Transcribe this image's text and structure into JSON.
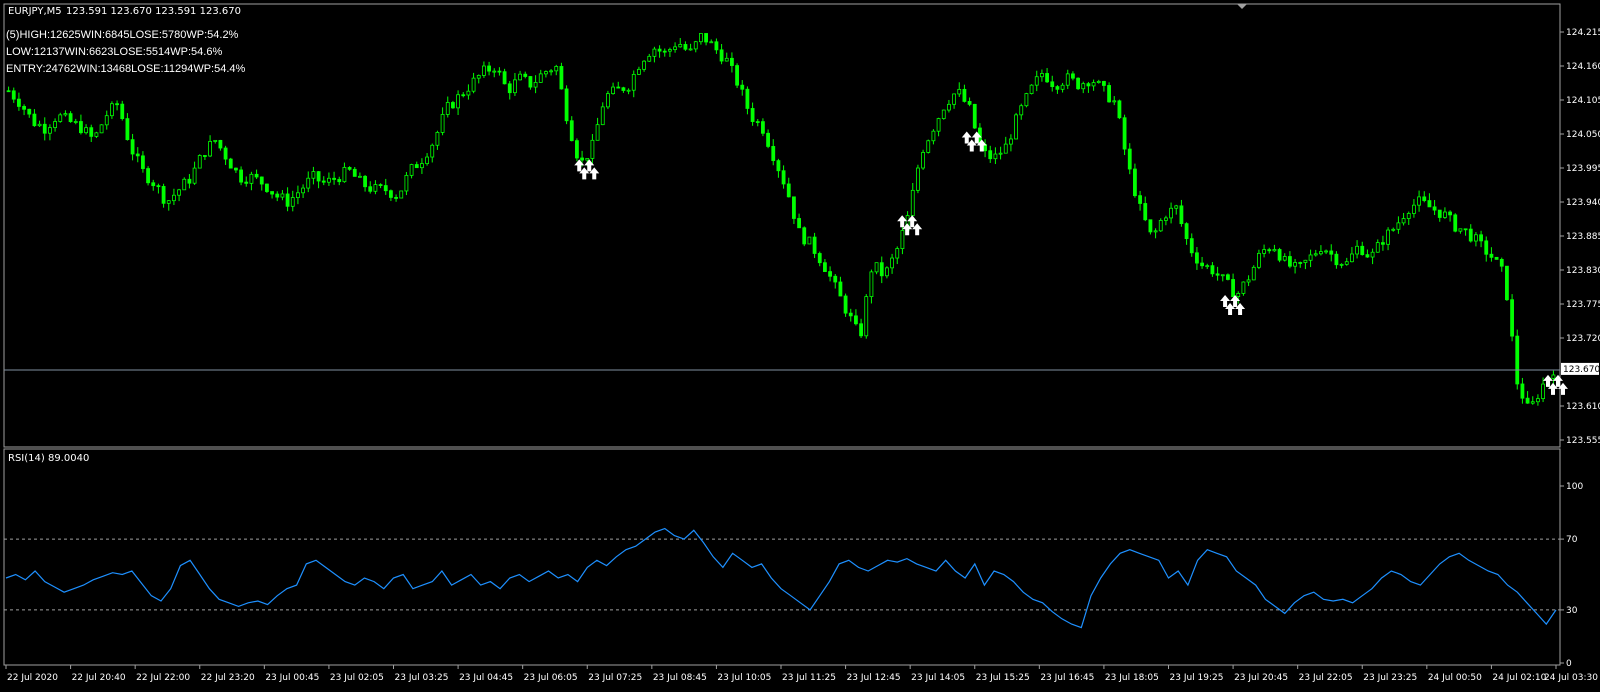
{
  "header": {
    "symbol": "EURJPY,M5",
    "ohlc": "123.591 123.670 123.591 123.670"
  },
  "stats": {
    "high": "(5)HIGH:12625WIN:6845LOSE:5780WP:54.2%",
    "low": "LOW:12137WIN:6623LOSE:5514WP:54.6%",
    "entry": "ENTRY:24762WIN:13468LOSE:11294WP:54.4%"
  },
  "colors": {
    "background": "#000000",
    "candle": "#00ff00",
    "rsi_line": "#1e90ff",
    "grid_line": "#a0a0a0",
    "arrow": "#ffffff",
    "price_line": "#8090a0"
  },
  "chart_data": [
    {
      "type": "candlestick",
      "title": "EURJPY,M5",
      "ylim": [
        123.555,
        124.215
      ],
      "y_ticks": [
        "124.215",
        "124.160",
        "124.105",
        "124.050",
        "123.995",
        "123.940",
        "123.885",
        "123.830",
        "123.775",
        "123.720",
        "123.670",
        "123.610",
        "123.555"
      ],
      "current_price": "123.670",
      "x_ticks": [
        "22 Jul 2020",
        "22 Jul 20:40",
        "22 Jul 22:00",
        "22 Jul 23:20",
        "23 Jul 00:45",
        "23 Jul 02:05",
        "23 Jul 03:25",
        "23 Jul 04:45",
        "23 Jul 06:05",
        "23 Jul 07:25",
        "23 Jul 08:45",
        "23 Jul 10:05",
        "23 Jul 11:25",
        "23 Jul 12:45",
        "23 Jul 14:05",
        "23 Jul 15:25",
        "23 Jul 16:45",
        "23 Jul 18:05",
        "23 Jul 19:25",
        "23 Jul 20:45",
        "23 Jul 22:05",
        "23 Jul 23:25",
        "24 Jul 00:50",
        "24 Jul 02:10",
        "24 Jul 03:30"
      ],
      "close_trajectory": [
        124.12,
        124.1,
        124.07,
        124.06,
        124.08,
        124.07,
        124.06,
        124.04,
        124.08,
        124.1,
        124.03,
        123.99,
        123.97,
        123.94,
        123.96,
        123.98,
        124.02,
        124.04,
        124.01,
        123.98,
        123.98,
        123.97,
        123.95,
        123.94,
        123.96,
        123.98,
        123.97,
        123.98,
        123.99,
        123.97,
        123.96,
        123.96,
        123.95,
        123.99,
        124.01,
        124.04,
        124.09,
        124.11,
        124.13,
        124.15,
        124.16,
        124.12,
        124.14,
        124.13,
        124.15,
        124.16,
        124.07,
        124.0,
        124.03,
        124.11,
        124.12,
        124.13,
        124.17,
        124.19,
        124.18,
        124.2,
        124.18,
        124.21,
        124.19,
        124.17,
        124.13,
        124.08,
        124.06,
        124.01,
        123.96,
        123.89,
        123.87,
        123.84,
        123.8,
        123.76,
        123.72,
        123.84,
        123.82,
        123.86,
        123.92,
        124.02,
        124.06,
        124.1,
        124.12,
        124.09,
        124.02,
        124.01,
        124.03,
        124.08,
        124.12,
        124.15,
        124.13,
        124.14,
        124.13,
        124.14,
        124.12,
        124.1,
        124.0,
        123.93,
        123.88,
        123.92,
        123.93,
        123.87,
        123.84,
        123.83,
        123.81,
        123.79,
        123.82,
        123.86,
        123.87,
        123.84,
        123.83,
        123.85,
        123.87,
        123.85,
        123.84,
        123.87,
        123.85,
        123.88,
        123.9,
        123.93,
        123.94,
        123.93,
        123.92,
        123.9,
        123.89,
        123.87,
        123.85,
        123.82,
        123.65,
        123.6,
        123.64,
        123.67
      ],
      "buy_arrows_near": [
        "23 Jul 07:25",
        "23 Jul 14:05",
        "23 Jul 15:25",
        "23 Jul 20:45",
        "24 Jul 03:30"
      ]
    },
    {
      "type": "line",
      "title": "RSI(14) 89.0040",
      "ylim": [
        0,
        100
      ],
      "y_ticks": [
        "100",
        "70",
        "30",
        "0"
      ],
      "levels": [
        70,
        30
      ],
      "values": [
        48,
        50,
        47,
        52,
        46,
        43,
        40,
        42,
        44,
        47,
        49,
        51,
        50,
        52,
        45,
        38,
        35,
        42,
        55,
        58,
        50,
        42,
        36,
        34,
        32,
        34,
        35,
        33,
        38,
        42,
        44,
        56,
        58,
        54,
        50,
        46,
        44,
        48,
        46,
        42,
        48,
        50,
        42,
        44,
        46,
        52,
        44,
        47,
        50,
        44,
        46,
        42,
        48,
        50,
        46,
        49,
        52,
        48,
        50,
        46,
        54,
        58,
        55,
        60,
        64,
        66,
        70,
        74,
        76,
        72,
        70,
        75,
        68,
        60,
        54,
        62,
        58,
        54,
        56,
        48,
        42,
        38,
        34,
        30,
        38,
        46,
        56,
        58,
        54,
        52,
        55,
        58,
        57,
        59,
        56,
        54,
        52,
        58,
        52,
        48,
        56,
        44,
        52,
        50,
        46,
        40,
        36,
        34,
        29,
        25,
        22,
        20,
        38,
        48,
        56,
        62,
        64,
        62,
        60,
        58,
        48,
        52,
        44,
        58,
        64,
        62,
        60,
        52,
        48,
        44,
        36,
        32,
        28,
        34,
        38,
        40,
        36,
        35,
        36,
        34,
        38,
        42,
        48,
        52,
        50,
        46,
        44,
        50,
        56,
        60,
        62,
        58,
        55,
        52,
        50,
        44,
        40,
        34,
        28,
        22,
        30
      ]
    }
  ]
}
